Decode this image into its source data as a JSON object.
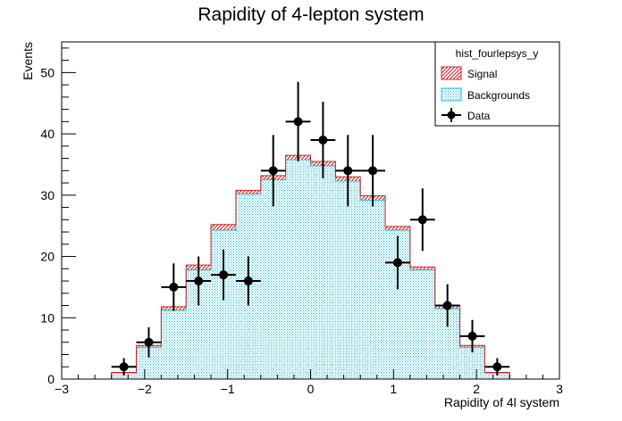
{
  "chart_data": {
    "type": "bar",
    "title": "Rapidity of 4-lepton system",
    "xlabel": "Rapidity of 4l system",
    "ylabel": "Events",
    "xlim": [
      -3,
      3
    ],
    "ylim": [
      0,
      55
    ],
    "x_ticks": [
      -3,
      -2,
      -1,
      0,
      1,
      2,
      3
    ],
    "x_tick_labels": [
      "−3",
      "−2",
      "−1",
      "0",
      "1",
      "2",
      "3"
    ],
    "y_ticks": [
      0,
      10,
      20,
      30,
      40,
      50
    ],
    "y_tick_labels": [
      "0",
      "10",
      "20",
      "30",
      "40",
      "50"
    ],
    "bin_width": 0.3,
    "bin_edges": [
      -2.4,
      -2.1,
      -1.8,
      -1.5,
      -1.2,
      -0.9,
      -0.6,
      -0.3,
      0.0,
      0.3,
      0.6,
      0.9,
      1.2,
      1.5,
      1.8,
      2.1,
      2.4
    ],
    "series": [
      {
        "name": "Backgrounds",
        "kind": "stacked-hist",
        "color": "#22bcd6",
        "values": [
          1,
          5.2,
          11.2,
          17.8,
          24.3,
          30.2,
          32.5,
          35.8,
          34.8,
          32.3,
          29.2,
          24.3,
          17.8,
          11.5,
          5.2,
          1
        ]
      },
      {
        "name": "Signal",
        "kind": "stacked-hist",
        "color": "#d62020",
        "values": [
          0.1,
          0.3,
          0.6,
          0.8,
          0.9,
          0.6,
          0.7,
          0.7,
          0.7,
          0.7,
          0.7,
          0.6,
          0.5,
          0.5,
          0.3,
          0.1
        ]
      },
      {
        "name": "Data",
        "kind": "points",
        "color": "#000000",
        "x": [
          -2.25,
          -1.95,
          -1.65,
          -1.35,
          -1.05,
          -0.75,
          -0.45,
          -0.15,
          0.15,
          0.45,
          0.75,
          1.05,
          1.35,
          1.65,
          1.95,
          2.25
        ],
        "y": [
          2,
          6,
          15,
          16,
          17,
          16,
          34,
          42,
          39,
          34,
          34,
          19,
          26,
          12,
          7,
          2
        ]
      }
    ],
    "legend": {
      "placement": "top-right",
      "title": "hist_fourlepsys_y",
      "entries": [
        "Signal",
        "Backgrounds",
        "Data"
      ]
    },
    "grid": false
  }
}
